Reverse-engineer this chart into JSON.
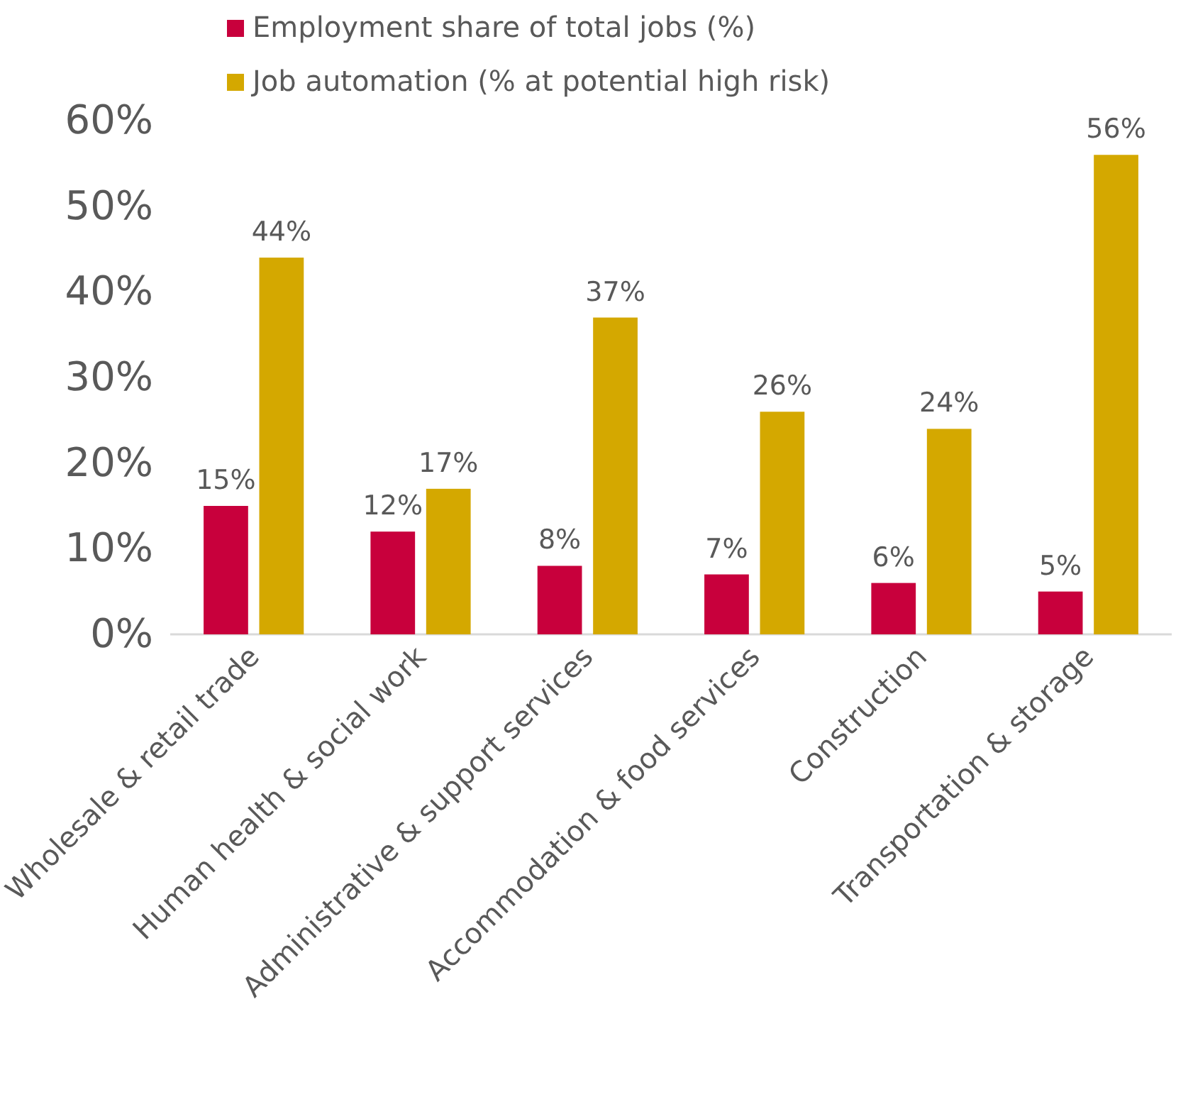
{
  "chart_data": {
    "type": "bar",
    "categories": [
      "Wholesale & retail trade",
      "Human health & social work",
      "Administrative & support services",
      "Accommodation & food services",
      "Construction",
      "Transportation & storage"
    ],
    "series": [
      {
        "name": "Employment share of total jobs (%)",
        "color": "#c8003c",
        "values": [
          15,
          12,
          8,
          7,
          6,
          5
        ],
        "value_labels": [
          "15%",
          "12%",
          "8%",
          "7%",
          "6%",
          "5%"
        ]
      },
      {
        "name": "Job automation (% at potential high risk)",
        "color": "#d4a800",
        "values": [
          44,
          17,
          37,
          26,
          24,
          56
        ],
        "value_labels": [
          "44%",
          "17%",
          "37%",
          "26%",
          "24%",
          "56%"
        ]
      }
    ],
    "ylim": [
      0,
      60
    ],
    "yticks": [
      {
        "value": 0,
        "label": "0%"
      },
      {
        "value": 10,
        "label": "10%"
      },
      {
        "value": 20,
        "label": "20%"
      },
      {
        "value": 30,
        "label": "30%"
      },
      {
        "value": 40,
        "label": "40%"
      },
      {
        "value": 50,
        "label": "50%"
      },
      {
        "value": 60,
        "label": "60%"
      }
    ],
    "legend": "top",
    "grid": false
  }
}
